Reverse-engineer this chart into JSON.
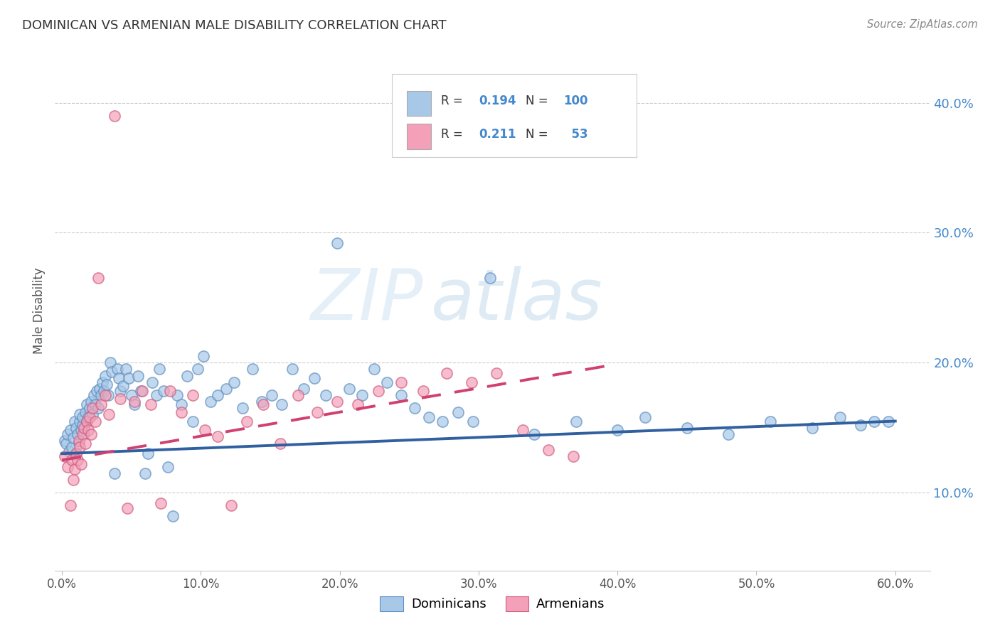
{
  "title": "DOMINICAN VS ARMENIAN MALE DISABILITY CORRELATION CHART",
  "source": "Source: ZipAtlas.com",
  "ylabel": "Male Disability",
  "xlim": [
    -0.005,
    0.625
  ],
  "ylim": [
    0.04,
    0.44
  ],
  "watermark_zip": "ZIP",
  "watermark_atlas": "atlas",
  "legend_labels": [
    "Dominicans",
    "Armenians"
  ],
  "legend_R": [
    0.194,
    0.211
  ],
  "legend_N": [
    100,
    53
  ],
  "blue_color": "#a8c8e8",
  "pink_color": "#f4a0b8",
  "blue_edge_color": "#6090c0",
  "pink_edge_color": "#d06080",
  "blue_line_color": "#3060a0",
  "pink_line_color": "#d04070",
  "background_color": "#ffffff",
  "grid_color": "#cccccc",
  "ytick_vals": [
    0.1,
    0.2,
    0.3,
    0.4
  ],
  "ytick_labels": [
    "10.0%",
    "20.0%",
    "30.0%",
    "40.0%"
  ],
  "xtick_vals": [
    0.0,
    0.1,
    0.2,
    0.3,
    0.4,
    0.5,
    0.6
  ],
  "xtick_labels": [
    "0.0%",
    "10.0%",
    "20.0%",
    "30.0%",
    "40.0%",
    "50.0%",
    "60.0%"
  ],
  "dominican_x": [
    0.002,
    0.003,
    0.004,
    0.005,
    0.006,
    0.007,
    0.008,
    0.009,
    0.01,
    0.01,
    0.011,
    0.012,
    0.013,
    0.013,
    0.014,
    0.015,
    0.015,
    0.016,
    0.017,
    0.018,
    0.018,
    0.019,
    0.02,
    0.021,
    0.022,
    0.023,
    0.024,
    0.025,
    0.026,
    0.027,
    0.028,
    0.029,
    0.03,
    0.031,
    0.032,
    0.033,
    0.035,
    0.036,
    0.038,
    0.04,
    0.041,
    0.042,
    0.044,
    0.046,
    0.048,
    0.05,
    0.052,
    0.055,
    0.057,
    0.06,
    0.062,
    0.065,
    0.068,
    0.07,
    0.073,
    0.076,
    0.08,
    0.083,
    0.086,
    0.09,
    0.094,
    0.098,
    0.102,
    0.107,
    0.112,
    0.118,
    0.124,
    0.13,
    0.137,
    0.144,
    0.151,
    0.158,
    0.166,
    0.174,
    0.182,
    0.19,
    0.198,
    0.207,
    0.216,
    0.225,
    0.234,
    0.244,
    0.254,
    0.264,
    0.274,
    0.285,
    0.296,
    0.308,
    0.34,
    0.37,
    0.4,
    0.42,
    0.45,
    0.48,
    0.51,
    0.54,
    0.56,
    0.575,
    0.585,
    0.595
  ],
  "dominican_y": [
    0.14,
    0.138,
    0.145,
    0.132,
    0.148,
    0.135,
    0.142,
    0.155,
    0.13,
    0.15,
    0.145,
    0.138,
    0.155,
    0.16,
    0.148,
    0.152,
    0.158,
    0.145,
    0.162,
    0.155,
    0.168,
    0.158,
    0.165,
    0.17,
    0.16,
    0.175,
    0.168,
    0.178,
    0.165,
    0.18,
    0.175,
    0.185,
    0.178,
    0.19,
    0.183,
    0.175,
    0.2,
    0.193,
    0.115,
    0.195,
    0.188,
    0.178,
    0.182,
    0.195,
    0.188,
    0.175,
    0.168,
    0.19,
    0.178,
    0.115,
    0.13,
    0.185,
    0.175,
    0.195,
    0.178,
    0.12,
    0.082,
    0.175,
    0.168,
    0.19,
    0.155,
    0.195,
    0.205,
    0.17,
    0.175,
    0.18,
    0.185,
    0.165,
    0.195,
    0.17,
    0.175,
    0.168,
    0.195,
    0.18,
    0.188,
    0.175,
    0.292,
    0.18,
    0.175,
    0.195,
    0.185,
    0.175,
    0.165,
    0.158,
    0.155,
    0.162,
    0.155,
    0.265,
    0.145,
    0.155,
    0.148,
    0.158,
    0.15,
    0.145,
    0.155,
    0.15,
    0.158,
    0.152,
    0.155,
    0.155
  ],
  "armenian_x": [
    0.002,
    0.004,
    0.006,
    0.007,
    0.008,
    0.009,
    0.01,
    0.011,
    0.012,
    0.013,
    0.014,
    0.015,
    0.016,
    0.017,
    0.018,
    0.019,
    0.02,
    0.021,
    0.022,
    0.024,
    0.026,
    0.028,
    0.031,
    0.034,
    0.038,
    0.042,
    0.047,
    0.052,
    0.058,
    0.064,
    0.071,
    0.078,
    0.086,
    0.094,
    0.103,
    0.112,
    0.122,
    0.133,
    0.145,
    0.157,
    0.17,
    0.184,
    0.198,
    0.213,
    0.228,
    0.244,
    0.26,
    0.277,
    0.295,
    0.313,
    0.332,
    0.35,
    0.368
  ],
  "armenian_y": [
    0.128,
    0.12,
    0.09,
    0.125,
    0.11,
    0.118,
    0.13,
    0.125,
    0.14,
    0.135,
    0.122,
    0.145,
    0.15,
    0.138,
    0.155,
    0.148,
    0.158,
    0.145,
    0.165,
    0.155,
    0.265,
    0.168,
    0.175,
    0.16,
    0.39,
    0.172,
    0.088,
    0.17,
    0.178,
    0.168,
    0.092,
    0.178,
    0.162,
    0.175,
    0.148,
    0.143,
    0.09,
    0.155,
    0.168,
    0.138,
    0.175,
    0.162,
    0.17,
    0.168,
    0.178,
    0.185,
    0.178,
    0.192,
    0.185,
    0.192,
    0.148,
    0.133,
    0.128
  ],
  "blue_trend_x": [
    0.0,
    0.6
  ],
  "blue_trend_y": [
    0.13,
    0.155
  ],
  "pink_trend_x": [
    0.0,
    0.395
  ],
  "pink_trend_y": [
    0.125,
    0.198
  ]
}
